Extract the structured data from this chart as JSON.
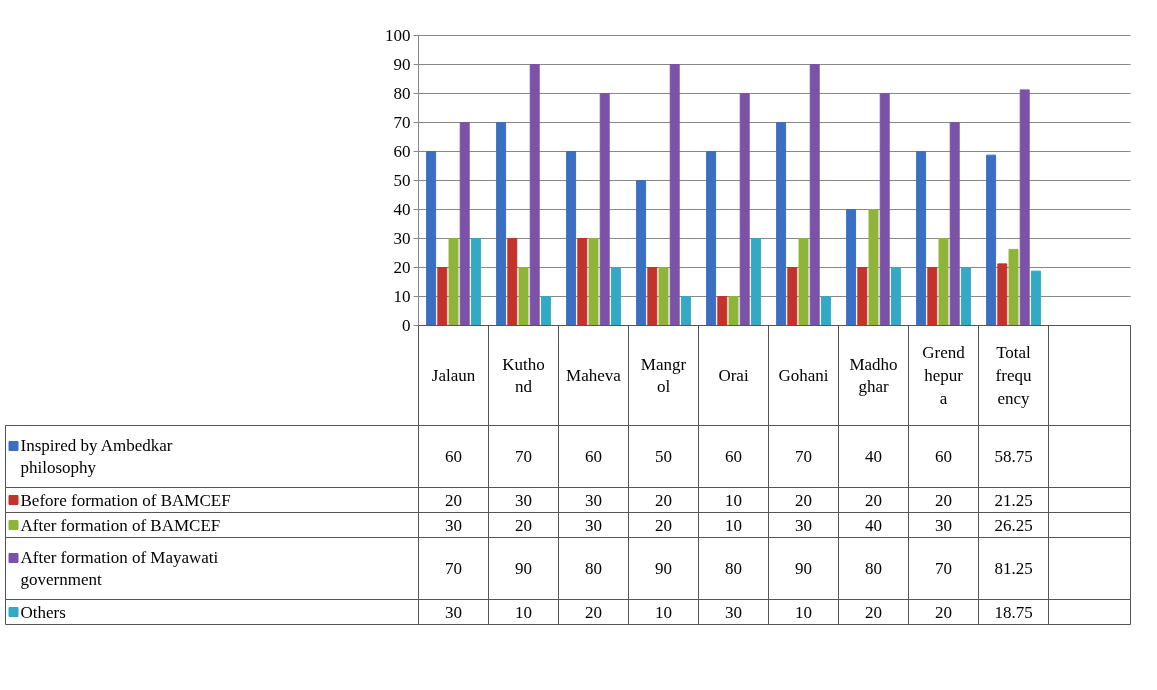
{
  "chart_data": {
    "type": "bar",
    "categories": [
      "Jalaun",
      "Kuthond",
      "Maheva",
      "Mangrol",
      "Orai",
      "Gohani",
      "Madhoghar",
      "Grendhepura",
      "Total frequency"
    ],
    "series": [
      {
        "name": "Inspired by Ambedkar philosophy",
        "color": "#3b6fc2",
        "values": [
          60,
          70,
          60,
          50,
          60,
          70,
          40,
          60,
          58.75
        ]
      },
      {
        "name": "Before formation of BAMCEF",
        "color": "#c2332c",
        "values": [
          20,
          30,
          30,
          20,
          10,
          20,
          20,
          20,
          21.25
        ]
      },
      {
        "name": "After formation of BAMCEF",
        "color": "#8fb43a",
        "values": [
          30,
          20,
          30,
          20,
          10,
          30,
          40,
          30,
          26.25
        ]
      },
      {
        "name": "After formation of Mayawati government",
        "color": "#7b52a8",
        "values": [
          70,
          90,
          80,
          90,
          80,
          90,
          80,
          70,
          81.25
        ]
      },
      {
        "name": "Others",
        "color": "#33a9c6",
        "values": [
          30,
          10,
          20,
          10,
          30,
          10,
          20,
          20,
          18.75
        ]
      }
    ],
    "ylim": [
      0,
      100
    ],
    "yticks": [
      0,
      10,
      20,
      30,
      40,
      50,
      60,
      70,
      80,
      90,
      100
    ],
    "grid": "y",
    "legend": "bottom",
    "data_labels": true
  }
}
